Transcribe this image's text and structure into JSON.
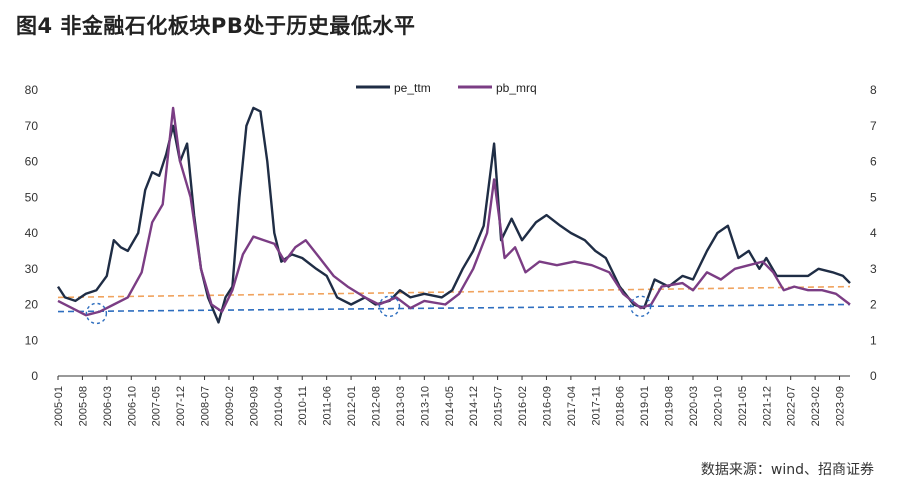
{
  "figure": {
    "title": "图4  非金融石化板块PB处于历史最低水平",
    "source": "数据来源：wind、招商证券"
  },
  "colors": {
    "pe_ttm": "#1f2d45",
    "pb_mrq": "#7b3d84",
    "orange_trend": "#f0a35e",
    "blue_trend": "#2e6ebf",
    "marker_circle": "#2e6ebf"
  },
  "chart_data": {
    "type": "line",
    "legend_position": "top-center",
    "grid": false,
    "y_left": {
      "ticks": [
        "0",
        "10",
        "20",
        "30",
        "40",
        "50",
        "60",
        "70",
        "80"
      ],
      "ylim": [
        0,
        80
      ]
    },
    "y_right": {
      "ticks": [
        "0",
        "1",
        "2",
        "3",
        "4",
        "5",
        "6",
        "7",
        "8"
      ],
      "ylim": [
        0,
        8
      ]
    },
    "x_ticks": [
      "2005-01",
      "2005-08",
      "2006-03",
      "2006-10",
      "2007-05",
      "2007-12",
      "2008-07",
      "2009-02",
      "2009-09",
      "2010-04",
      "2010-11",
      "2011-06",
      "2012-01",
      "2012-08",
      "2013-03",
      "2013-10",
      "2014-05",
      "2014-12",
      "2015-07",
      "2016-02",
      "2016-09",
      "2017-04",
      "2017-11",
      "2018-06",
      "2019-01",
      "2019-08",
      "2020-03",
      "2020-10",
      "2021-05",
      "2021-12",
      "2022-07",
      "2023-02",
      "2023-09"
    ],
    "series": [
      {
        "name": "pe_ttm",
        "axis": "left",
        "points": [
          [
            "2005-01",
            25
          ],
          [
            "2005-03",
            22
          ],
          [
            "2005-06",
            21
          ],
          [
            "2005-09",
            23
          ],
          [
            "2005-12",
            24
          ],
          [
            "2006-03",
            28
          ],
          [
            "2006-05",
            38
          ],
          [
            "2006-07",
            36
          ],
          [
            "2006-09",
            35
          ],
          [
            "2006-12",
            40
          ],
          [
            "2007-02",
            52
          ],
          [
            "2007-04",
            57
          ],
          [
            "2007-06",
            56
          ],
          [
            "2007-08",
            62
          ],
          [
            "2007-10",
            70
          ],
          [
            "2007-12",
            60
          ],
          [
            "2008-02",
            65
          ],
          [
            "2008-04",
            45
          ],
          [
            "2008-06",
            30
          ],
          [
            "2008-08",
            22
          ],
          [
            "2008-11",
            15
          ],
          [
            "2009-01",
            22
          ],
          [
            "2009-03",
            25
          ],
          [
            "2009-05",
            50
          ],
          [
            "2009-07",
            70
          ],
          [
            "2009-09",
            75
          ],
          [
            "2009-11",
            74
          ],
          [
            "2010-01",
            60
          ],
          [
            "2010-03",
            40
          ],
          [
            "2010-05",
            32
          ],
          [
            "2010-08",
            34
          ],
          [
            "2010-11",
            33
          ],
          [
            "2011-03",
            30
          ],
          [
            "2011-06",
            28
          ],
          [
            "2011-09",
            22
          ],
          [
            "2012-01",
            20
          ],
          [
            "2012-05",
            22
          ],
          [
            "2012-08",
            20
          ],
          [
            "2012-12",
            21
          ],
          [
            "2013-03",
            24
          ],
          [
            "2013-06",
            22
          ],
          [
            "2013-10",
            23
          ],
          [
            "2014-03",
            22
          ],
          [
            "2014-06",
            24
          ],
          [
            "2014-09",
            30
          ],
          [
            "2014-12",
            35
          ],
          [
            "2015-03",
            42
          ],
          [
            "2015-06",
            65
          ],
          [
            "2015-08",
            38
          ],
          [
            "2015-11",
            44
          ],
          [
            "2016-02",
            38
          ],
          [
            "2016-06",
            43
          ],
          [
            "2016-09",
            45
          ],
          [
            "2017-01",
            42
          ],
          [
            "2017-04",
            40
          ],
          [
            "2017-08",
            38
          ],
          [
            "2017-11",
            35
          ],
          [
            "2018-02",
            33
          ],
          [
            "2018-06",
            25
          ],
          [
            "2018-10",
            20
          ],
          [
            "2019-01",
            19
          ],
          [
            "2019-04",
            27
          ],
          [
            "2019-08",
            25
          ],
          [
            "2019-12",
            28
          ],
          [
            "2020-03",
            27
          ],
          [
            "2020-07",
            35
          ],
          [
            "2020-10",
            40
          ],
          [
            "2021-01",
            42
          ],
          [
            "2021-04",
            33
          ],
          [
            "2021-07",
            35
          ],
          [
            "2021-10",
            30
          ],
          [
            "2021-12",
            33
          ],
          [
            "2022-03",
            28
          ],
          [
            "2022-07",
            28
          ],
          [
            "2022-12",
            28
          ],
          [
            "2023-03",
            30
          ],
          [
            "2023-07",
            29
          ],
          [
            "2023-10",
            28
          ],
          [
            "2023-12",
            26
          ]
        ]
      },
      {
        "name": "pb_mrq",
        "axis": "right",
        "points": [
          [
            "2005-01",
            2.1
          ],
          [
            "2005-05",
            1.9
          ],
          [
            "2005-09",
            1.7
          ],
          [
            "2006-01",
            1.8
          ],
          [
            "2006-05",
            2.0
          ],
          [
            "2006-09",
            2.2
          ],
          [
            "2007-01",
            2.9
          ],
          [
            "2007-04",
            4.3
          ],
          [
            "2007-07",
            4.8
          ],
          [
            "2007-10",
            7.5
          ],
          [
            "2007-12",
            6.0
          ],
          [
            "2008-03",
            5.0
          ],
          [
            "2008-06",
            3.0
          ],
          [
            "2008-09",
            2.0
          ],
          [
            "2008-12",
            1.8
          ],
          [
            "2009-03",
            2.4
          ],
          [
            "2009-06",
            3.4
          ],
          [
            "2009-09",
            3.9
          ],
          [
            "2009-12",
            3.8
          ],
          [
            "2010-03",
            3.7
          ],
          [
            "2010-06",
            3.2
          ],
          [
            "2010-09",
            3.6
          ],
          [
            "2010-12",
            3.8
          ],
          [
            "2011-04",
            3.3
          ],
          [
            "2011-08",
            2.8
          ],
          [
            "2011-12",
            2.5
          ],
          [
            "2012-05",
            2.2
          ],
          [
            "2012-09",
            2.0
          ],
          [
            "2013-02",
            2.2
          ],
          [
            "2013-06",
            1.9
          ],
          [
            "2013-10",
            2.1
          ],
          [
            "2014-04",
            2.0
          ],
          [
            "2014-08",
            2.3
          ],
          [
            "2014-12",
            3.0
          ],
          [
            "2015-04",
            4.0
          ],
          [
            "2015-06",
            5.5
          ],
          [
            "2015-09",
            3.3
          ],
          [
            "2015-12",
            3.6
          ],
          [
            "2016-03",
            2.9
          ],
          [
            "2016-07",
            3.2
          ],
          [
            "2016-12",
            3.1
          ],
          [
            "2017-05",
            3.2
          ],
          [
            "2017-10",
            3.1
          ],
          [
            "2018-03",
            2.9
          ],
          [
            "2018-07",
            2.3
          ],
          [
            "2018-12",
            1.9
          ],
          [
            "2019-03",
            2.0
          ],
          [
            "2019-06",
            2.5
          ],
          [
            "2019-12",
            2.6
          ],
          [
            "2020-03",
            2.4
          ],
          [
            "2020-07",
            2.9
          ],
          [
            "2020-11",
            2.7
          ],
          [
            "2021-03",
            3.0
          ],
          [
            "2021-07",
            3.1
          ],
          [
            "2021-11",
            3.2
          ],
          [
            "2022-02",
            2.9
          ],
          [
            "2022-05",
            2.4
          ],
          [
            "2022-08",
            2.5
          ],
          [
            "2022-12",
            2.4
          ],
          [
            "2023-04",
            2.4
          ],
          [
            "2023-08",
            2.3
          ],
          [
            "2023-12",
            2.0
          ]
        ]
      },
      {
        "name": "orange_trend",
        "axis": "left",
        "style": "dashed",
        "points": [
          [
            "2005-01",
            22
          ],
          [
            "2023-12",
            25
          ]
        ]
      },
      {
        "name": "blue_trend",
        "axis": "left",
        "style": "dashed",
        "points": [
          [
            "2005-01",
            18
          ],
          [
            "2023-12",
            20
          ]
        ]
      }
    ],
    "annotations": [
      {
        "type": "dashed-circle",
        "x": "2005-12",
        "y": 17.5
      },
      {
        "type": "dashed-circle",
        "x": "2012-12",
        "y": 19.5
      },
      {
        "type": "dashed-circle",
        "x": "2018-12",
        "y": 19.5
      }
    ]
  }
}
